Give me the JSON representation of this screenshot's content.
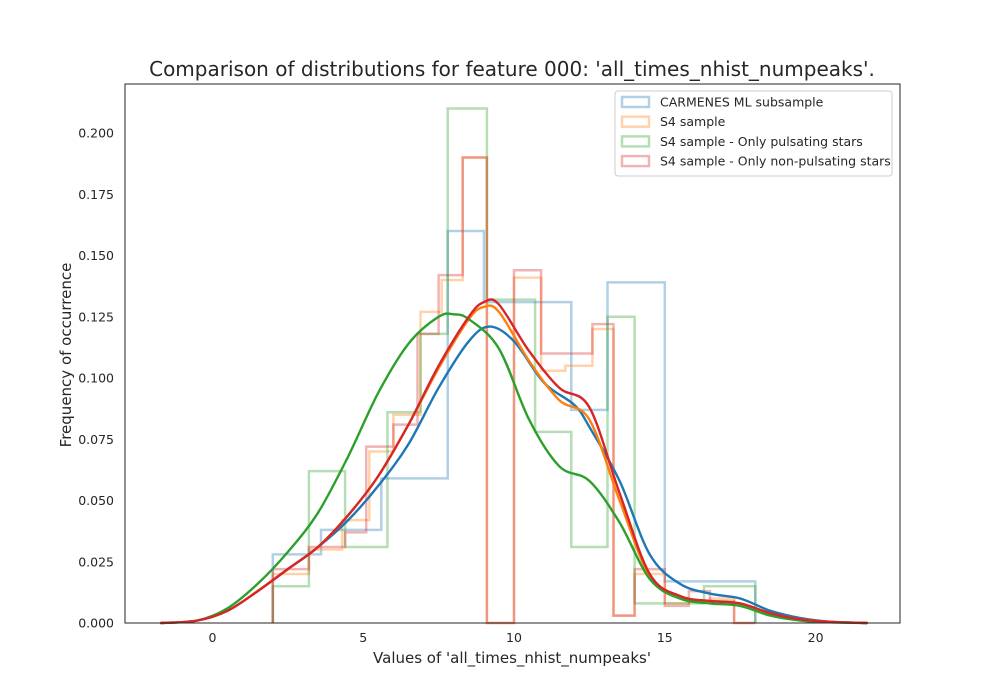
{
  "chart_data": {
    "type": "histogram-kde",
    "title": "Comparison of distributions for feature 000: 'all_times_nhist_numpeaks'.",
    "xlabel": "Values of 'all_times_nhist_numpeaks'",
    "ylabel": "Frequency of occurrence",
    "xlim": [
      -2.9,
      22.8
    ],
    "ylim": [
      0,
      0.22
    ],
    "xticks": [
      0,
      5,
      10,
      15,
      20
    ],
    "xtick_labels": [
      "0",
      "5",
      "10",
      "15",
      "20"
    ],
    "yticks": [
      0,
      0.025,
      0.05,
      0.075,
      0.1,
      0.125,
      0.15,
      0.175,
      0.2
    ],
    "ytick_labels": [
      "0.000",
      "0.025",
      "0.050",
      "0.075",
      "0.100",
      "0.125",
      "0.150",
      "0.175",
      "0.200"
    ],
    "grid": false,
    "legend_position": "top-right",
    "series": [
      {
        "name": "CARMENES ML subsample",
        "color": "#1f77b4",
        "hist": {
          "edges": [
            2,
            3.6,
            5.6,
            7.8,
            9.0,
            11.9,
            13.1,
            15.0,
            18.0
          ],
          "values": [
            0.028,
            0.038,
            0.059,
            0.16,
            0.131,
            0.087,
            0.139,
            0.017,
            0.0
          ]
        },
        "kde": {
          "x": [
            -1.7,
            -0.5,
            0.5,
            1.5,
            2.5,
            3.5,
            4.5,
            5.5,
            6.5,
            7.5,
            8.5,
            9.2,
            10.0,
            11.0,
            12.0,
            12.5,
            13.5,
            14.5,
            15.5,
            16.5,
            17.5,
            18.5,
            19.5,
            20.5,
            21.7
          ],
          "y": [
            0.0,
            0.001,
            0.005,
            0.013,
            0.022,
            0.031,
            0.042,
            0.056,
            0.073,
            0.096,
            0.115,
            0.121,
            0.115,
            0.098,
            0.089,
            0.08,
            0.058,
            0.028,
            0.016,
            0.012,
            0.01,
            0.005,
            0.002,
            0.0005,
            0.0
          ]
        }
      },
      {
        "name": "S4 sample",
        "color": "#ff7f0e",
        "hist": {
          "edges": [
            2,
            3.2,
            4.3,
            5.2,
            6.0,
            6.9,
            7.6,
            8.3,
            9.1,
            10.0,
            10.9,
            11.7,
            12.6,
            13.3,
            14.0,
            15.0,
            15.8,
            16.5,
            17.3,
            18.0
          ],
          "values": [
            0.02,
            0.03,
            0.042,
            0.07,
            0.085,
            0.127,
            0.14,
            0.19,
            0.0,
            0.141,
            0.103,
            0.105,
            0.12,
            0.003,
            0.02,
            0.008,
            0.009,
            0.01,
            0.0
          ]
        },
        "kde": {
          "x": [
            -1.7,
            -0.5,
            0.5,
            1.5,
            2.5,
            3.5,
            4.5,
            5.5,
            6.5,
            7.5,
            8.5,
            9.0,
            9.5,
            10.5,
            11.5,
            12.5,
            13.5,
            14.5,
            15.5,
            16.5,
            17.5,
            18.5,
            19.5,
            20.5,
            21.7
          ],
          "y": [
            0.0,
            0.001,
            0.005,
            0.013,
            0.022,
            0.031,
            0.044,
            0.06,
            0.081,
            0.104,
            0.124,
            0.129,
            0.127,
            0.107,
            0.091,
            0.083,
            0.05,
            0.019,
            0.01,
            0.009,
            0.008,
            0.004,
            0.0015,
            0.0005,
            0.0
          ]
        }
      },
      {
        "name": "S4 sample - Only pulsating stars",
        "color": "#2ca02c",
        "hist": {
          "edges": [
            2,
            3.2,
            4.4,
            5.8,
            6.9,
            7.8,
            8.1,
            9.1,
            10.7,
            11.9,
            13.1,
            14.0,
            15.0,
            16.3,
            18.0
          ],
          "values": [
            0.015,
            0.062,
            0.031,
            0.086,
            0.118,
            0.21,
            0.21,
            0.132,
            0.078,
            0.031,
            0.125,
            0.008,
            0.008,
            0.015,
            0.0
          ]
        },
        "kde": {
          "x": [
            -1.7,
            -0.5,
            0.5,
            1.5,
            2.5,
            3.5,
            4.5,
            5.5,
            6.5,
            7.5,
            8.0,
            8.5,
            9.5,
            10.5,
            11.5,
            12.5,
            13.5,
            14.5,
            15.5,
            16.5,
            17.5,
            18.5,
            19.5,
            20.5,
            21.7
          ],
          "y": [
            0.0,
            0.001,
            0.006,
            0.016,
            0.029,
            0.045,
            0.068,
            0.094,
            0.114,
            0.125,
            0.126,
            0.124,
            0.112,
            0.083,
            0.064,
            0.058,
            0.041,
            0.018,
            0.01,
            0.008,
            0.007,
            0.003,
            0.001,
            0.0003,
            0.0
          ]
        }
      },
      {
        "name": "S4 sample - Only non-pulsating stars",
        "color": "#d62728",
        "hist": {
          "edges": [
            2,
            3.2,
            4.4,
            5.1,
            6.0,
            6.8,
            7.5,
            8.3,
            9.1,
            10.0,
            10.9,
            11.7,
            12.6,
            13.3,
            14.0,
            15.0,
            15.8,
            16.5,
            17.3,
            18.0
          ],
          "values": [
            0.022,
            0.031,
            0.037,
            0.072,
            0.081,
            0.118,
            0.142,
            0.19,
            0.0,
            0.144,
            0.11,
            0.11,
            0.122,
            0.003,
            0.022,
            0.007,
            0.013,
            0.009,
            0.0
          ]
        },
        "kde": {
          "x": [
            -1.7,
            -0.5,
            0.5,
            1.5,
            2.5,
            3.5,
            4.5,
            5.5,
            6.5,
            7.5,
            8.5,
            9.0,
            9.5,
            10.5,
            11.5,
            12.5,
            13.5,
            14.5,
            15.5,
            16.5,
            17.5,
            18.5,
            19.5,
            20.5,
            21.7
          ],
          "y": [
            0.0,
            0.001,
            0.005,
            0.013,
            0.022,
            0.031,
            0.044,
            0.06,
            0.081,
            0.105,
            0.125,
            0.131,
            0.13,
            0.111,
            0.096,
            0.088,
            0.053,
            0.02,
            0.011,
            0.009,
            0.008,
            0.004,
            0.0015,
            0.0005,
            0.0
          ]
        }
      }
    ]
  }
}
